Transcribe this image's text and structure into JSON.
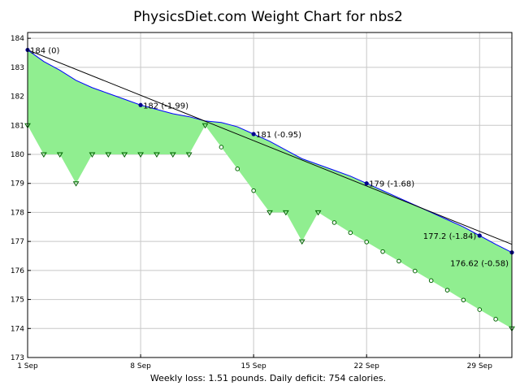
{
  "chart_data": {
    "type": "line",
    "title": "PhysicsDiet.com Weight Chart for nbs2",
    "footer": "Weekly loss: 1.51 pounds. Daily deficit: 754 calories.",
    "xlabel": "",
    "ylabel": "",
    "x_ticks": [
      {
        "day": 1,
        "label": "1 Sep"
      },
      {
        "day": 8,
        "label": "8 Sep"
      },
      {
        "day": 15,
        "label": "15 Sep"
      },
      {
        "day": 22,
        "label": "22 Sep"
      },
      {
        "day": 29,
        "label": "29 Sep"
      }
    ],
    "xlim": [
      1,
      31
    ],
    "ylim": [
      173,
      184.2
    ],
    "y_ticks": [
      173,
      174,
      175,
      176,
      177,
      178,
      179,
      180,
      181,
      182,
      183,
      184
    ],
    "grid": true,
    "colors": {
      "fill": "#90ee90",
      "trend_line": "#0000ff",
      "regression_line": "#000000",
      "marker": "#00008b",
      "weight_marker": "#006400"
    },
    "weights": [
      {
        "day": 1,
        "value": 181
      },
      {
        "day": 2,
        "value": 180
      },
      {
        "day": 3,
        "value": 180
      },
      {
        "day": 4,
        "value": 179
      },
      {
        "day": 5,
        "value": 180
      },
      {
        "day": 6,
        "value": 180
      },
      {
        "day": 7,
        "value": 180
      },
      {
        "day": 8,
        "value": 180
      },
      {
        "day": 9,
        "value": 180
      },
      {
        "day": 10,
        "value": 180
      },
      {
        "day": 11,
        "value": 180
      },
      {
        "day": 12,
        "value": 181
      },
      {
        "day": 13,
        "value": 180.25
      },
      {
        "day": 14,
        "value": 179.5
      },
      {
        "day": 15,
        "value": 178.75
      },
      {
        "day": 16,
        "value": 178
      },
      {
        "day": 17,
        "value": 178
      },
      {
        "day": 18,
        "value": 177
      },
      {
        "day": 19,
        "value": 178
      },
      {
        "day": 20,
        "value": 177.65
      },
      {
        "day": 21,
        "value": 177.3
      },
      {
        "day": 22,
        "value": 176.98
      },
      {
        "day": 23,
        "value": 176.65
      },
      {
        "day": 24,
        "value": 176.32
      },
      {
        "day": 25,
        "value": 175.98
      },
      {
        "day": 26,
        "value": 175.65
      },
      {
        "day": 27,
        "value": 175.32
      },
      {
        "day": 28,
        "value": 174.98
      },
      {
        "day": 29,
        "value": 174.65
      },
      {
        "day": 30,
        "value": 174.32
      },
      {
        "day": 31,
        "value": 174
      }
    ],
    "trend": [
      {
        "day": 1,
        "value": 183.6
      },
      {
        "day": 2,
        "value": 183.2
      },
      {
        "day": 3,
        "value": 182.9
      },
      {
        "day": 4,
        "value": 182.55
      },
      {
        "day": 5,
        "value": 182.3
      },
      {
        "day": 6,
        "value": 182.1
      },
      {
        "day": 7,
        "value": 181.9
      },
      {
        "day": 8,
        "value": 181.7
      },
      {
        "day": 9,
        "value": 181.55
      },
      {
        "day": 10,
        "value": 181.4
      },
      {
        "day": 11,
        "value": 181.3
      },
      {
        "day": 12,
        "value": 181.15
      },
      {
        "day": 13,
        "value": 181.1
      },
      {
        "day": 14,
        "value": 180.95
      },
      {
        "day": 15,
        "value": 180.7
      },
      {
        "day": 16,
        "value": 180.45
      },
      {
        "day": 17,
        "value": 180.15
      },
      {
        "day": 18,
        "value": 179.85
      },
      {
        "day": 19,
        "value": 179.65
      },
      {
        "day": 20,
        "value": 179.45
      },
      {
        "day": 21,
        "value": 179.25
      },
      {
        "day": 22,
        "value": 179.0
      },
      {
        "day": 23,
        "value": 178.75
      },
      {
        "day": 24,
        "value": 178.5
      },
      {
        "day": 25,
        "value": 178.25
      },
      {
        "day": 26,
        "value": 178.0
      },
      {
        "day": 27,
        "value": 177.75
      },
      {
        "day": 28,
        "value": 177.5
      },
      {
        "day": 29,
        "value": 177.2
      },
      {
        "day": 30,
        "value": 176.9
      },
      {
        "day": 31,
        "value": 176.62
      }
    ],
    "regression": [
      {
        "day": 1,
        "value": 183.6
      },
      {
        "day": 31,
        "value": 176.9
      }
    ],
    "annotations": [
      {
        "day": 1,
        "value": 183.6,
        "label": "184 (0)",
        "anchor": "start"
      },
      {
        "day": 8,
        "value": 181.7,
        "label": "182 (-1.99)",
        "anchor": "start"
      },
      {
        "day": 15,
        "value": 180.7,
        "label": "181 (-0.95)",
        "anchor": "start"
      },
      {
        "day": 22,
        "value": 179.0,
        "label": "179 (-1.68)",
        "anchor": "start"
      },
      {
        "day": 29,
        "value": 177.2,
        "label": "177.2 (-1.84)",
        "anchor": "end"
      },
      {
        "day": 31,
        "value": 176.62,
        "label": "176.62 (-0.58)",
        "anchor": "end"
      }
    ]
  }
}
